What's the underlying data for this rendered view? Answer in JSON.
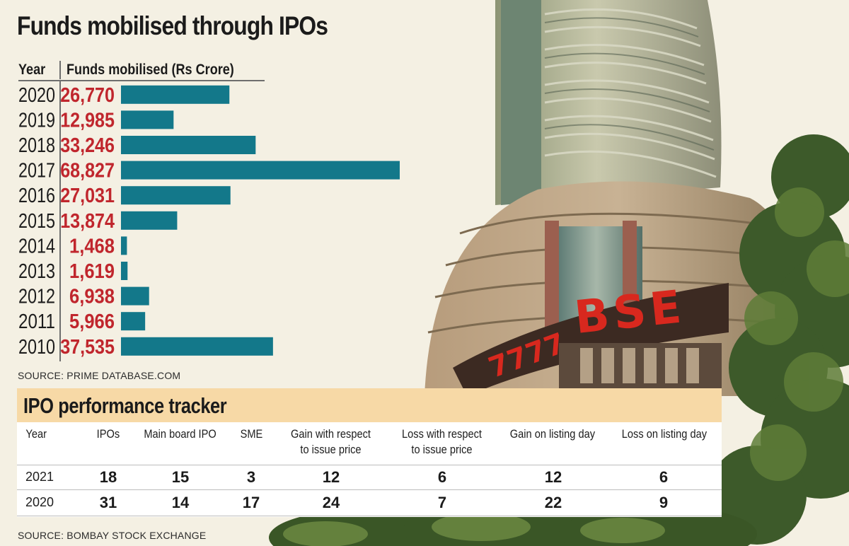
{
  "chart_data": {
    "type": "bar",
    "orientation": "horizontal",
    "title": "Funds mobilised through IPOs",
    "xlabel": "Funds mobilised (Rs Crore)",
    "ylabel": "Year",
    "categories": [
      "2020",
      "2019",
      "2018",
      "2017",
      "2016",
      "2015",
      "2014",
      "2013",
      "2012",
      "2011",
      "2010"
    ],
    "values": [
      26770,
      12985,
      33246,
      68827,
      27031,
      13874,
      1468,
      1619,
      6938,
      5966,
      37535
    ],
    "value_labels": [
      "26,770",
      "12,985",
      "33,246",
      "68,827",
      "27,031",
      "13,874",
      "1,468",
      "1,619",
      "6,938",
      "5,966",
      "37,535"
    ],
    "xlim": [
      0,
      68827
    ],
    "grid": false,
    "bar_color": "#13788a",
    "value_color": "#c0262d"
  },
  "chart": {
    "title": "Funds mobilised through IPOs",
    "year_header": "Year",
    "funds_header": "Funds mobilised (Rs Crore)",
    "source": "SOURCE: PRIME DATABASE.COM"
  },
  "table": {
    "title": "IPO performance tracker",
    "header_color": "#f7d9a6",
    "columns": [
      "Year",
      "IPOs",
      "Main board IPO",
      "SME",
      "Gain with respect to issue price",
      "Loss with respect to issue price",
      "Gain on listing day",
      "Loss on listing day"
    ],
    "rows": [
      {
        "year": "2021",
        "values": [
          "18",
          "15",
          "3",
          "12",
          "6",
          "12",
          "6"
        ]
      },
      {
        "year": "2020",
        "values": [
          "31",
          "14",
          "17",
          "24",
          "7",
          "22",
          "9"
        ]
      }
    ],
    "source": "SOURCE: BOMBAY STOCK EXCHANGE"
  },
  "photo": {
    "sign_text": "BSE",
    "ticker_text": "7777",
    "sign_color": "#d8281e"
  }
}
